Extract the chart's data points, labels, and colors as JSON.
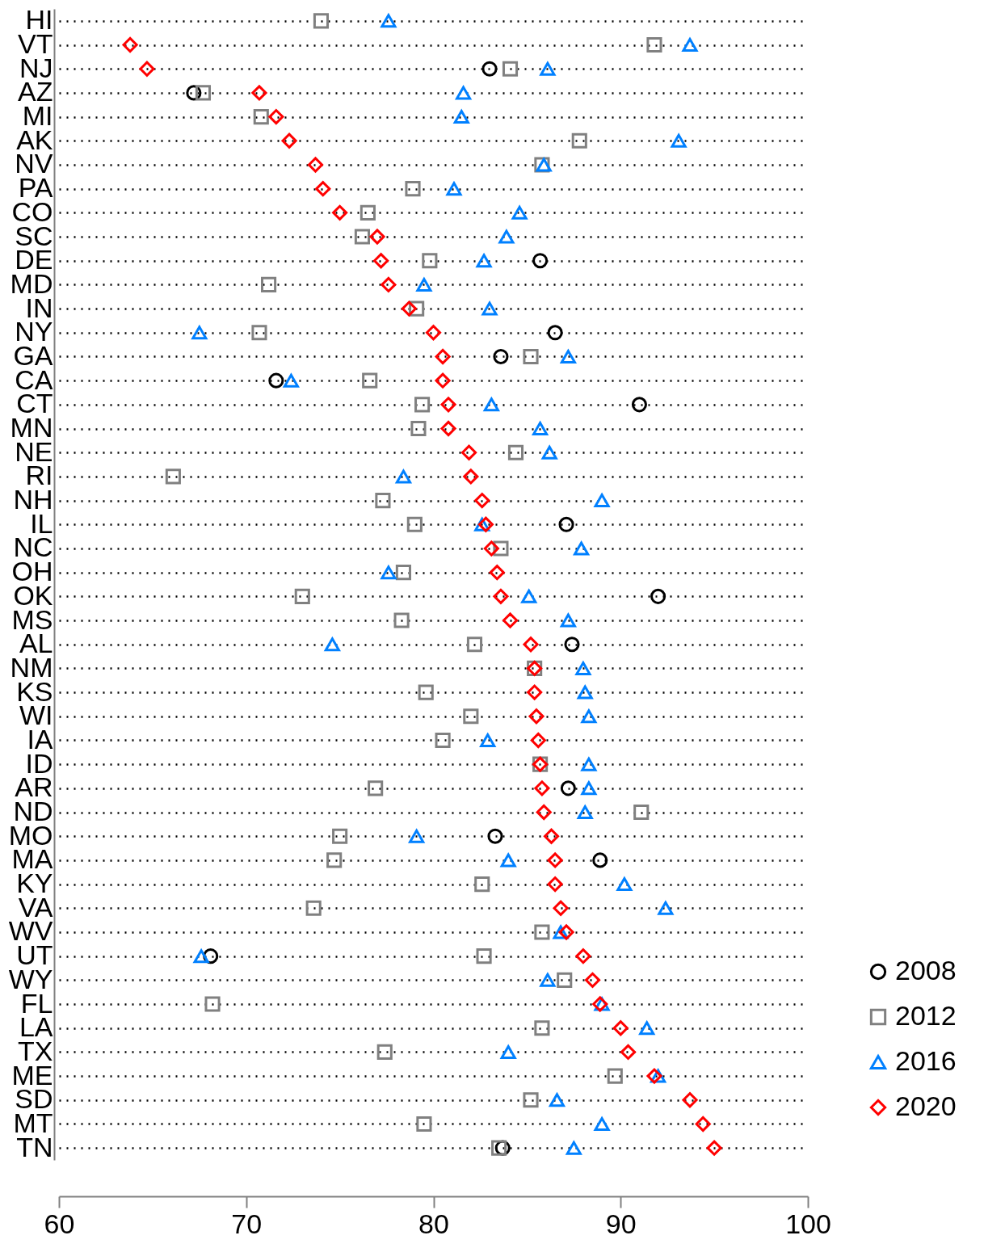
{
  "chart_data": {
    "type": "scatter",
    "categories": [
      "HI",
      "VT",
      "NJ",
      "AZ",
      "MI",
      "AK",
      "NV",
      "PA",
      "CO",
      "SC",
      "DE",
      "MD",
      "IN",
      "NY",
      "GA",
      "CA",
      "CT",
      "MN",
      "NE",
      "RI",
      "NH",
      "IL",
      "NC",
      "OH",
      "OK",
      "MS",
      "AL",
      "NM",
      "KS",
      "WI",
      "IA",
      "ID",
      "AR",
      "ND",
      "MO",
      "MA",
      "KY",
      "VA",
      "WV",
      "UT",
      "WY",
      "FL",
      "LA",
      "TX",
      "ME",
      "SD",
      "MT",
      "TN"
    ],
    "series": [
      {
        "name": "2008",
        "color": "#000000",
        "marker": "circle",
        "values": [
          null,
          null,
          83.0,
          67.2,
          null,
          null,
          null,
          null,
          null,
          null,
          85.7,
          null,
          null,
          86.5,
          83.6,
          71.6,
          91.0,
          null,
          null,
          null,
          null,
          87.1,
          null,
          null,
          92.0,
          null,
          87.4,
          null,
          null,
          null,
          null,
          null,
          87.2,
          null,
          83.3,
          88.9,
          null,
          null,
          null,
          68.1,
          null,
          null,
          null,
          null,
          null,
          null,
          null,
          83.7
        ]
      },
      {
        "name": "2012",
        "color": "#808080",
        "marker": "square",
        "values": [
          74.0,
          91.8,
          84.1,
          67.7,
          70.8,
          87.8,
          85.8,
          78.9,
          76.5,
          76.2,
          79.8,
          71.2,
          79.1,
          70.7,
          85.2,
          76.6,
          79.4,
          79.2,
          84.4,
          66.1,
          77.3,
          79.0,
          83.6,
          78.4,
          73.0,
          78.3,
          82.2,
          85.4,
          79.6,
          82.0,
          80.5,
          85.7,
          76.9,
          91.1,
          75.0,
          74.7,
          82.6,
          73.6,
          85.8,
          82.7,
          87.0,
          68.2,
          85.8,
          77.4,
          89.7,
          85.2,
          79.5,
          83.5
        ]
      },
      {
        "name": "2016",
        "color": "#0080ff",
        "marker": "triangle",
        "values": [
          77.6,
          93.7,
          86.1,
          81.6,
          81.5,
          93.1,
          85.9,
          81.1,
          84.6,
          83.9,
          82.7,
          79.5,
          83.0,
          67.5,
          87.2,
          72.4,
          83.1,
          85.7,
          86.2,
          78.4,
          89.0,
          82.6,
          87.9,
          77.6,
          85.1,
          87.2,
          74.6,
          88.0,
          88.1,
          88.3,
          82.9,
          88.3,
          88.3,
          88.1,
          79.1,
          84.0,
          90.2,
          92.4,
          86.8,
          67.6,
          86.1,
          89.0,
          91.4,
          84.0,
          92.0,
          86.6,
          89.0,
          87.5
        ]
      },
      {
        "name": "2020",
        "color": "#ff0000",
        "marker": "diamond",
        "values": [
          null,
          63.8,
          64.7,
          70.7,
          71.6,
          72.3,
          73.7,
          74.1,
          75.0,
          77.0,
          77.2,
          77.6,
          78.7,
          80.0,
          80.5,
          80.5,
          80.8,
          80.8,
          81.9,
          82.0,
          82.6,
          82.8,
          83.1,
          83.4,
          83.6,
          84.1,
          85.2,
          85.4,
          85.4,
          85.5,
          85.6,
          85.7,
          85.8,
          85.9,
          86.3,
          86.5,
          86.5,
          86.8,
          87.1,
          88.0,
          88.5,
          88.9,
          90.0,
          90.4,
          91.8,
          93.7,
          94.4,
          95.0
        ]
      }
    ],
    "orientation": "horizontal",
    "xlim": [
      60,
      100
    ],
    "xticks": [
      60,
      70,
      80,
      90,
      100
    ],
    "grid": "y",
    "legend": "right"
  }
}
